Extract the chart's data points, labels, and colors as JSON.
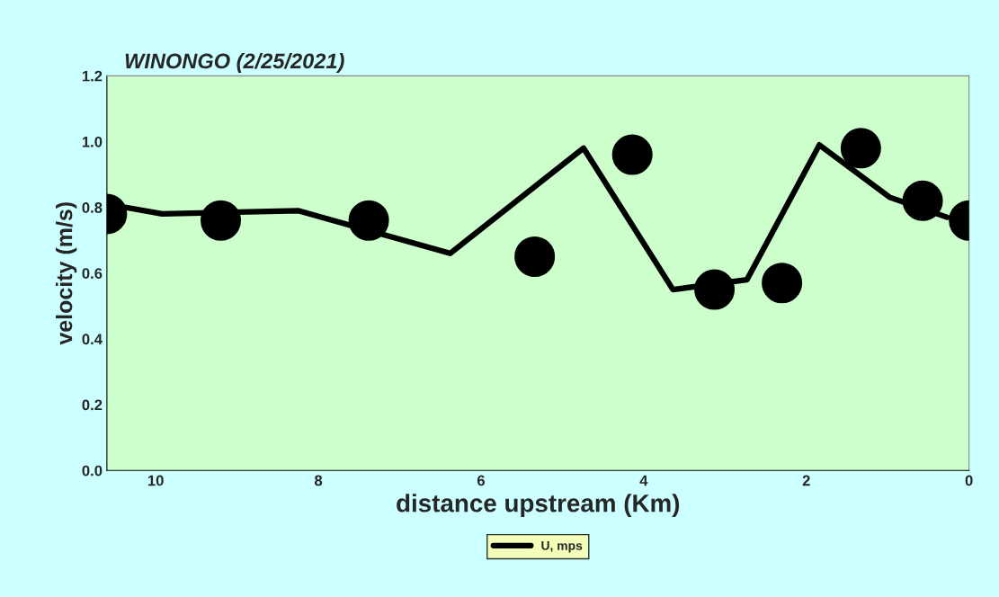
{
  "chart_data": {
    "type": "line",
    "title": "WINONGO (2/25/2021)",
    "xlabel": "distance upstream (Km)",
    "ylabel": "velocity (m/s)",
    "series": [
      {
        "name": "U, mps",
        "color": "#000000",
        "marker": "none",
        "x": [
          10.6,
          9.92,
          8.25,
          6.38,
          4.74,
          3.64,
          2.73,
          1.84,
          0.97,
          0.27
        ],
        "values": [
          0.81,
          0.78,
          0.79,
          0.66,
          0.98,
          0.55,
          0.58,
          0.99,
          0.83,
          0.77
        ]
      },
      {
        "type": "scatter",
        "color": "#000000",
        "marker": "circle",
        "x": [
          10.6,
          9.2,
          7.38,
          5.34,
          4.14,
          3.13,
          2.3,
          1.33,
          0.57,
          0
        ],
        "values": [
          0.78,
          0.76,
          0.76,
          0.65,
          0.96,
          0.55,
          0.57,
          0.98,
          0.82,
          0.76
        ]
      }
    ],
    "xlim": [
      10.6,
      0
    ],
    "xticks": [
      10,
      8,
      6,
      4,
      2,
      0
    ],
    "ylim": [
      0,
      1.2
    ],
    "yticks": [
      {
        "value": 0,
        "label": "0.0"
      },
      {
        "value": 0.2,
        "label": "0.2"
      },
      {
        "value": 0.4,
        "label": "0.4"
      },
      {
        "value": 0.6,
        "label": "0.6"
      },
      {
        "value": 0.8,
        "label": "0.8"
      },
      {
        "value": 1.0,
        "label": "1.0"
      },
      {
        "value": 1.2,
        "label": "1.2"
      }
    ],
    "grid": false,
    "legend": "bottom"
  }
}
